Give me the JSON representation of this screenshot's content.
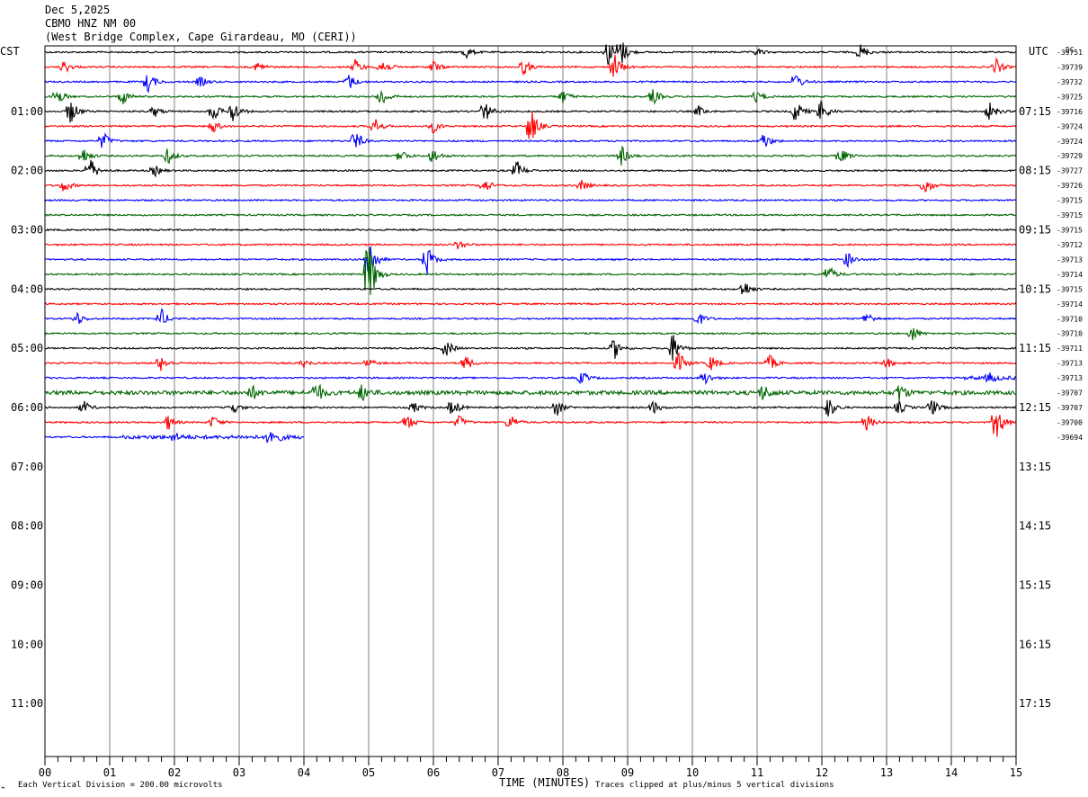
{
  "header": {
    "date": "Dec 5,2025",
    "station": "CBMO HNZ NM 00",
    "location": "(West Bridge Complex, Cape Girardeau, MO (CERI))",
    "left_timezone": "CST",
    "right_timezone": "UTC",
    "dc_label": "DC"
  },
  "footer": {
    "scale_note": "Each Vertical Division =  200.00 microvolts",
    "clip_note": "Traces clipped at plus/minus 5 vertical divisions",
    "corner_mark": "⌁"
  },
  "colors": {
    "trace_cycle": [
      "#000000",
      "#ff0000",
      "#0000ff",
      "#006400"
    ],
    "grid": "#808080",
    "axis": "#000000"
  },
  "chart_data": {
    "type": "line",
    "title": "Dec 5,2025",
    "xlabel": "TIME (MINUTES)",
    "ylabel": "",
    "x_range": [
      0,
      15
    ],
    "x_ticks": [
      "00",
      "01",
      "02",
      "03",
      "04",
      "05",
      "06",
      "07",
      "08",
      "09",
      "10",
      "11",
      "12",
      "13",
      "14",
      "15"
    ],
    "left_time_labels": [
      "01:00",
      "02:00",
      "03:00",
      "04:00",
      "05:00",
      "06:00",
      "07:00",
      "08:00",
      "09:00",
      "10:00",
      "11:00"
    ],
    "right_time_labels": [
      "07:15",
      "08:15",
      "09:15",
      "10:15",
      "11:15",
      "12:15",
      "13:15",
      "14:15",
      "15:15",
      "16:15",
      "17:15"
    ],
    "row_minutes": 15,
    "total_rows": 48,
    "dc_offsets": [
      "-39751",
      "-39739",
      "-39732",
      "-39725",
      "-39716",
      "-39724",
      "-39724",
      "-39729",
      "-39727",
      "-39726",
      "-39715",
      "-39715",
      "-39715",
      "-39712",
      "-39713",
      "-39714",
      "-39715",
      "-39714",
      "-39710",
      "-39710",
      "-39711",
      "-39713",
      "-39713",
      "-39707",
      "-39707",
      "-39700",
      "-39694"
    ],
    "last_row_end_minute": 4.0,
    "events": [
      {
        "row": 0,
        "minute": 6.5,
        "amp": 0.5
      },
      {
        "row": 0,
        "minute": 8.7,
        "amp": 1.1
      },
      {
        "row": 0,
        "minute": 8.9,
        "amp": 1.0
      },
      {
        "row": 0,
        "minute": 12.6,
        "amp": 0.6
      },
      {
        "row": 0,
        "minute": 11.0,
        "amp": 0.3
      },
      {
        "row": 1,
        "minute": 0.3,
        "amp": 0.5
      },
      {
        "row": 1,
        "minute": 3.3,
        "amp": 0.4
      },
      {
        "row": 1,
        "minute": 4.8,
        "amp": 0.6
      },
      {
        "row": 1,
        "minute": 5.2,
        "amp": 0.8
      },
      {
        "row": 1,
        "minute": 6.0,
        "amp": 0.5
      },
      {
        "row": 1,
        "minute": 7.4,
        "amp": 0.6
      },
      {
        "row": 1,
        "minute": 8.8,
        "amp": 1.0
      },
      {
        "row": 1,
        "minute": 14.7,
        "amp": 0.6
      },
      {
        "row": 2,
        "minute": 1.6,
        "amp": 0.8
      },
      {
        "row": 2,
        "minute": 2.4,
        "amp": 0.4
      },
      {
        "row": 2,
        "minute": 4.7,
        "amp": 0.6
      },
      {
        "row": 2,
        "minute": 11.6,
        "amp": 0.7
      },
      {
        "row": 3,
        "minute": 0.2,
        "amp": 0.6
      },
      {
        "row": 3,
        "minute": 1.2,
        "amp": 0.6
      },
      {
        "row": 3,
        "minute": 5.2,
        "amp": 0.8
      },
      {
        "row": 3,
        "minute": 8.0,
        "amp": 0.5
      },
      {
        "row": 3,
        "minute": 9.4,
        "amp": 0.6
      },
      {
        "row": 3,
        "minute": 11.0,
        "amp": 0.5
      },
      {
        "row": 4,
        "minute": 0.4,
        "amp": 1.0
      },
      {
        "row": 4,
        "minute": 1.7,
        "amp": 0.4
      },
      {
        "row": 4,
        "minute": 2.6,
        "amp": 0.7
      },
      {
        "row": 4,
        "minute": 2.9,
        "amp": 1.0
      },
      {
        "row": 4,
        "minute": 6.8,
        "amp": 0.8
      },
      {
        "row": 4,
        "minute": 10.1,
        "amp": 0.4
      },
      {
        "row": 4,
        "minute": 11.6,
        "amp": 0.9
      },
      {
        "row": 4,
        "minute": 12.0,
        "amp": 0.9
      },
      {
        "row": 4,
        "minute": 14.6,
        "amp": 0.7
      },
      {
        "row": 5,
        "minute": 2.6,
        "amp": 0.5
      },
      {
        "row": 5,
        "minute": 5.1,
        "amp": 0.6
      },
      {
        "row": 5,
        "minute": 6.0,
        "amp": 0.5
      },
      {
        "row": 5,
        "minute": 7.5,
        "amp": 1.6
      },
      {
        "row": 6,
        "minute": 0.9,
        "amp": 0.7
      },
      {
        "row": 6,
        "minute": 4.8,
        "amp": 0.8
      },
      {
        "row": 6,
        "minute": 11.1,
        "amp": 0.7
      },
      {
        "row": 7,
        "minute": 0.6,
        "amp": 0.6
      },
      {
        "row": 7,
        "minute": 1.9,
        "amp": 0.6
      },
      {
        "row": 7,
        "minute": 5.5,
        "amp": 0.5
      },
      {
        "row": 7,
        "minute": 6.0,
        "amp": 0.6
      },
      {
        "row": 7,
        "minute": 8.9,
        "amp": 0.8
      },
      {
        "row": 7,
        "minute": 12.3,
        "amp": 0.6
      },
      {
        "row": 8,
        "minute": 0.7,
        "amp": 1.0
      },
      {
        "row": 8,
        "minute": 1.7,
        "amp": 0.4
      },
      {
        "row": 8,
        "minute": 7.3,
        "amp": 0.7
      },
      {
        "row": 9,
        "minute": 0.3,
        "amp": 0.5
      },
      {
        "row": 9,
        "minute": 6.8,
        "amp": 0.5
      },
      {
        "row": 9,
        "minute": 8.3,
        "amp": 0.4
      },
      {
        "row": 9,
        "minute": 13.6,
        "amp": 0.7
      },
      {
        "row": 13,
        "minute": 6.4,
        "amp": 0.4
      },
      {
        "row": 14,
        "minute": 5.0,
        "amp": 2.0
      },
      {
        "row": 14,
        "minute": 5.9,
        "amp": 1.2
      },
      {
        "row": 14,
        "minute": 12.4,
        "amp": 0.6
      },
      {
        "row": 15,
        "minute": 5.0,
        "amp": 3.0
      },
      {
        "row": 15,
        "minute": 12.1,
        "amp": 0.7
      },
      {
        "row": 16,
        "minute": 10.8,
        "amp": 0.7
      },
      {
        "row": 18,
        "minute": 0.5,
        "amp": 0.5
      },
      {
        "row": 18,
        "minute": 1.8,
        "amp": 0.7
      },
      {
        "row": 18,
        "minute": 10.1,
        "amp": 0.5
      },
      {
        "row": 18,
        "minute": 12.7,
        "amp": 0.5
      },
      {
        "row": 19,
        "minute": 13.4,
        "amp": 0.6
      },
      {
        "row": 20,
        "minute": 6.2,
        "amp": 0.7
      },
      {
        "row": 20,
        "minute": 8.8,
        "amp": 0.8
      },
      {
        "row": 20,
        "minute": 9.7,
        "amp": 1.2
      },
      {
        "row": 21,
        "minute": 1.8,
        "amp": 0.6
      },
      {
        "row": 21,
        "minute": 4.0,
        "amp": 0.3
      },
      {
        "row": 21,
        "minute": 5.0,
        "amp": 0.3
      },
      {
        "row": 21,
        "minute": 6.5,
        "amp": 0.6
      },
      {
        "row": 21,
        "minute": 9.8,
        "amp": 0.8
      },
      {
        "row": 21,
        "minute": 10.3,
        "amp": 0.6
      },
      {
        "row": 21,
        "minute": 11.2,
        "amp": 0.6
      },
      {
        "row": 21,
        "minute": 13.0,
        "amp": 0.4
      },
      {
        "row": 22,
        "minute": 8.3,
        "amp": 0.5
      },
      {
        "row": 22,
        "minute": 10.2,
        "amp": 0.5
      },
      {
        "row": 22,
        "minute": 14.6,
        "amp": 0.3
      },
      {
        "row": 23,
        "minute": 3.2,
        "amp": 0.5
      },
      {
        "row": 23,
        "minute": 4.2,
        "amp": 0.8
      },
      {
        "row": 23,
        "minute": 4.9,
        "amp": 0.6
      },
      {
        "row": 23,
        "minute": 11.1,
        "amp": 0.6
      },
      {
        "row": 23,
        "minute": 13.2,
        "amp": 0.7
      },
      {
        "row": 24,
        "minute": 0.6,
        "amp": 0.5
      },
      {
        "row": 24,
        "minute": 2.9,
        "amp": 0.5
      },
      {
        "row": 24,
        "minute": 5.7,
        "amp": 0.4
      },
      {
        "row": 24,
        "minute": 6.3,
        "amp": 0.7
      },
      {
        "row": 24,
        "minute": 7.9,
        "amp": 0.7
      },
      {
        "row": 24,
        "minute": 9.4,
        "amp": 0.5
      },
      {
        "row": 24,
        "minute": 12.1,
        "amp": 0.9
      },
      {
        "row": 24,
        "minute": 13.2,
        "amp": 0.5
      },
      {
        "row": 24,
        "minute": 13.7,
        "amp": 0.7
      },
      {
        "row": 25,
        "minute": 1.9,
        "amp": 0.6
      },
      {
        "row": 25,
        "minute": 2.6,
        "amp": 0.5
      },
      {
        "row": 25,
        "minute": 5.6,
        "amp": 0.6
      },
      {
        "row": 25,
        "minute": 6.4,
        "amp": 0.5
      },
      {
        "row": 25,
        "minute": 7.2,
        "amp": 0.6
      },
      {
        "row": 25,
        "minute": 12.7,
        "amp": 0.6
      },
      {
        "row": 25,
        "minute": 14.7,
        "amp": 1.5
      },
      {
        "row": 26,
        "minute": 3.5,
        "amp": 0.8
      },
      {
        "row": 26,
        "minute": 2.0,
        "amp": 0.3
      }
    ]
  }
}
